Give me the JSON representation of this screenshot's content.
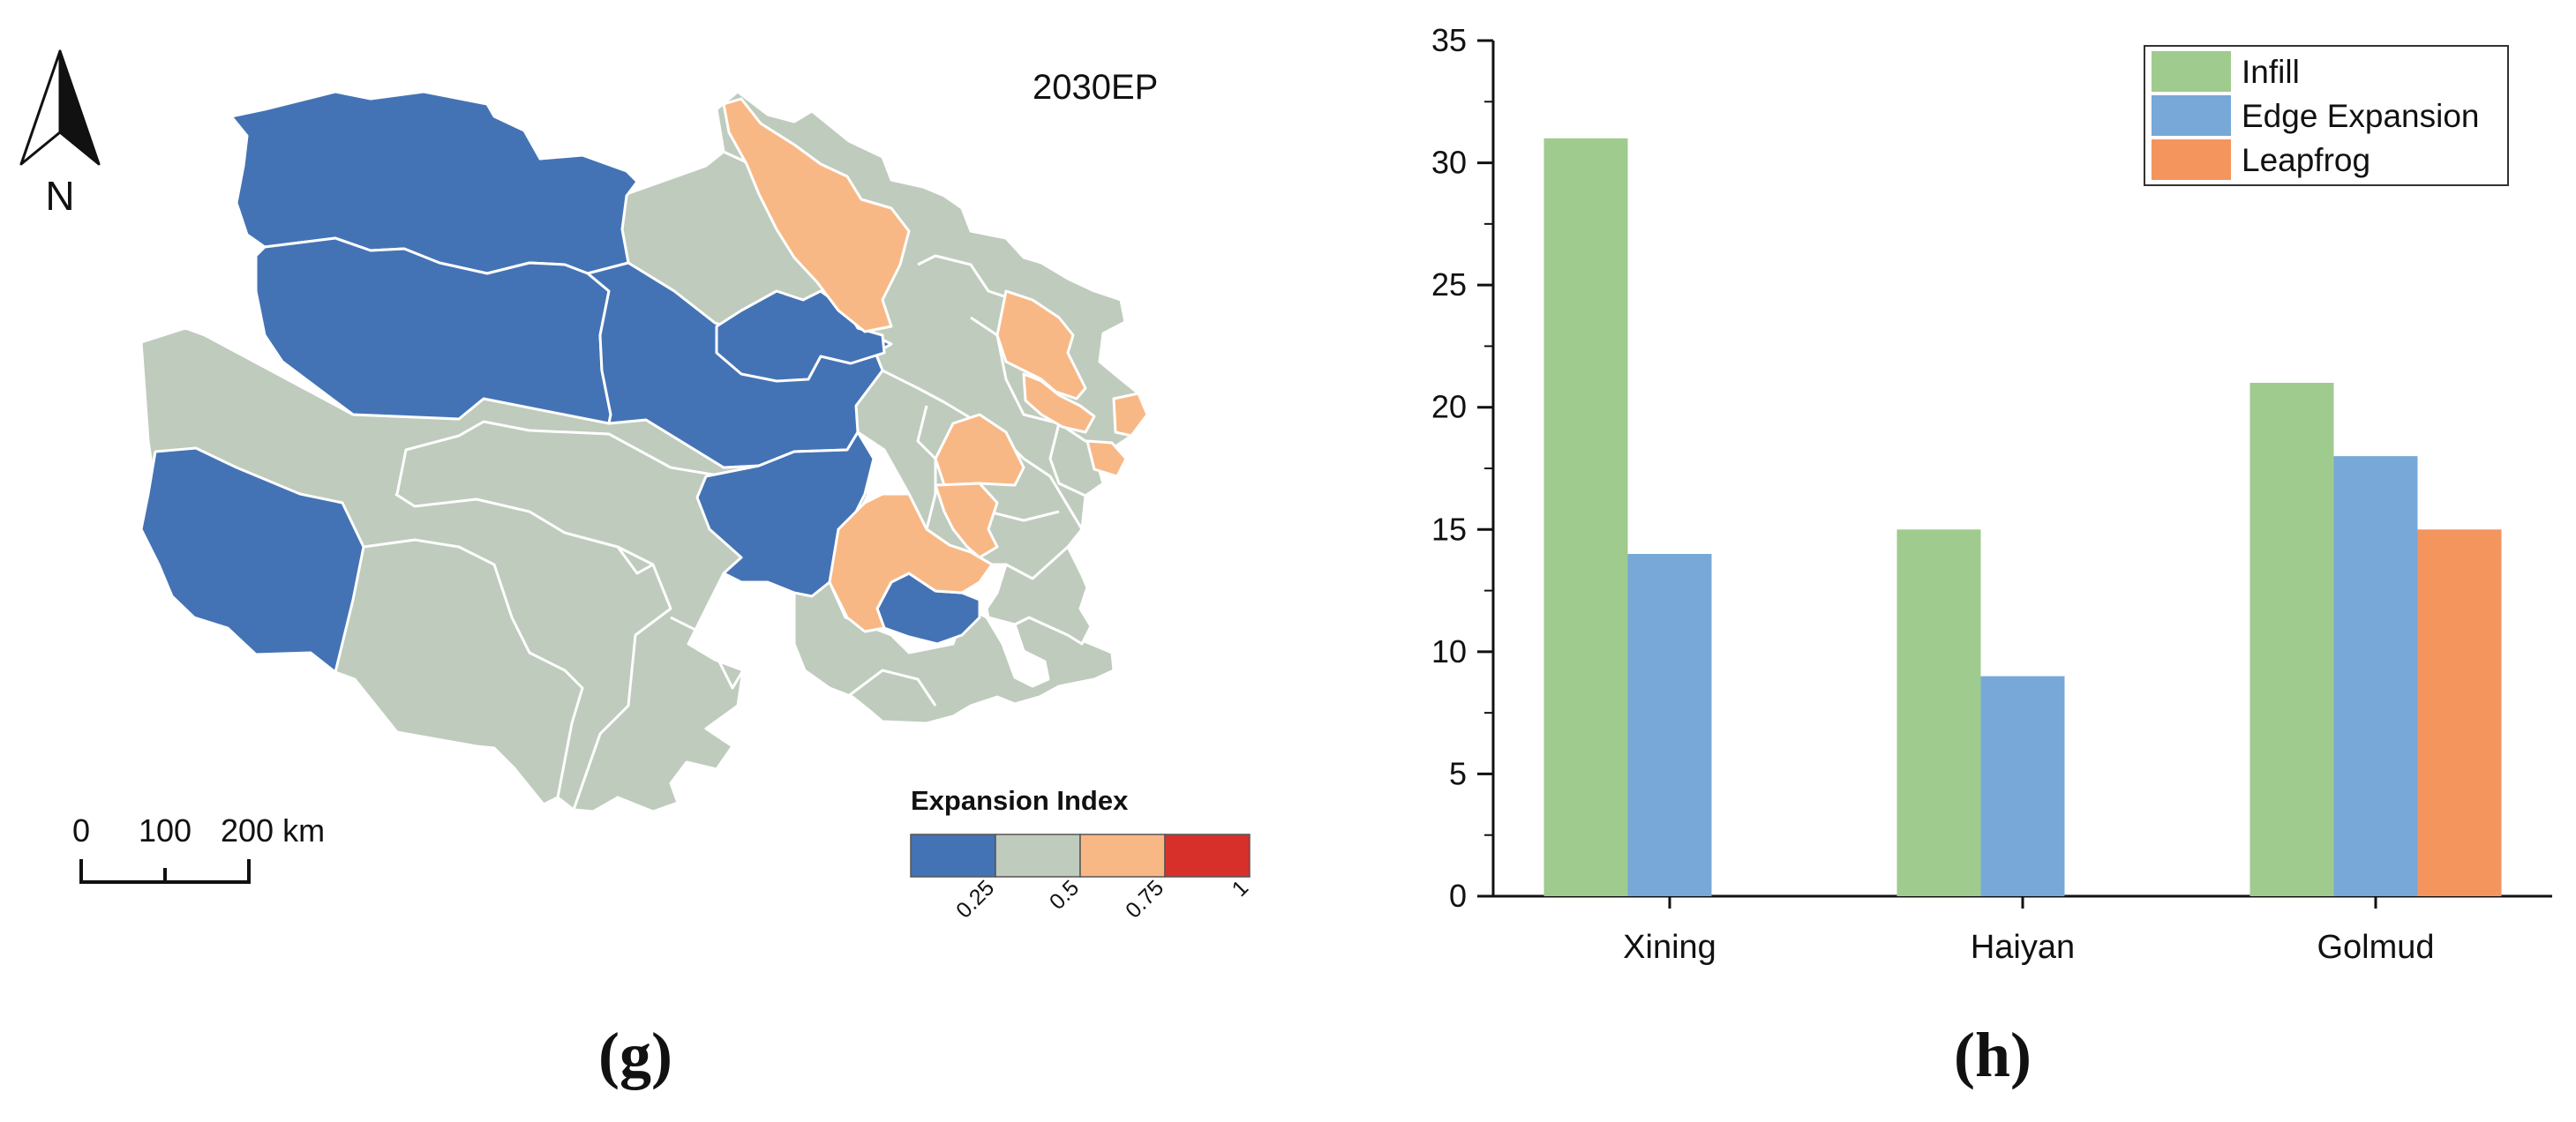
{
  "panels": {
    "g": {
      "letter_text": "(g)",
      "map_label": "2030EP",
      "north_label": "N",
      "scale_labels": [
        "0",
        "100",
        "200 km"
      ],
      "colorbar": {
        "title": "Expansion Index",
        "colors": [
          "#4473b5",
          "#bfcbbd",
          "#f8b886",
          "#d7302b"
        ],
        "tick_labels": [
          "0.25",
          "0.5",
          "0.75",
          "1"
        ]
      },
      "region_colors": {
        "blue": "#4473b5",
        "gray": "#bfcbbd",
        "peach": "#f8b886"
      }
    },
    "h": {
      "letter_text": "(h)"
    }
  },
  "chart_data": {
    "type": "bar",
    "categories": [
      "Xining",
      "Haiyan",
      "Golmud"
    ],
    "series": [
      {
        "name": "Infill",
        "color": "#9fcb8e",
        "values": [
          31,
          15,
          21
        ]
      },
      {
        "name": "Edge Expansion",
        "color": "#77a8d8",
        "values": [
          14,
          9,
          18
        ]
      },
      {
        "name": "Leapfrog",
        "color": "#f4955e",
        "values": [
          0,
          0,
          15
        ]
      }
    ],
    "ylim": [
      0,
      35
    ],
    "yticks": [
      0,
      5,
      10,
      15,
      20,
      25,
      30,
      35
    ],
    "title": "",
    "xlabel": "",
    "ylabel": "",
    "legend": "top-right",
    "grid": false
  }
}
